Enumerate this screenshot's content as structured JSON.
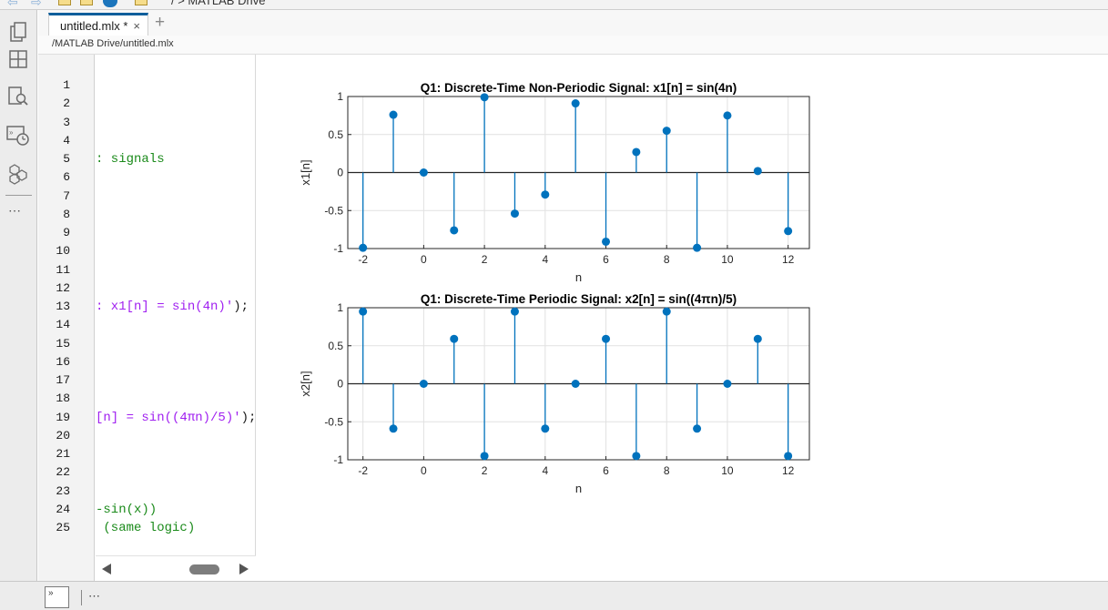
{
  "topbar": {
    "breadcrumb": "/  >  MATLAB Drive"
  },
  "left_rail": {
    "icons": [
      "files-icon",
      "layout-icon",
      "find-files-icon",
      "command-history-icon",
      "add-ons-icon"
    ],
    "more_label": "⋯"
  },
  "tabs": [
    {
      "label": "untitled.mlx *",
      "close_glyph": "×"
    }
  ],
  "add_tab_glyph": "+",
  "file_path": "/MATLAB Drive/untitled.mlx",
  "editor": {
    "line_numbers": [
      "1",
      "2",
      "3",
      "4",
      "5",
      "6",
      "7",
      "8",
      "9",
      "10",
      "11",
      "12",
      "13",
      "14",
      "15",
      "16",
      "17",
      "18",
      "19",
      "20",
      "21",
      "22",
      "23",
      "24",
      "25"
    ],
    "visible_code": [
      {
        "line": 5,
        "text": ": signals",
        "kind": "comment"
      },
      {
        "line": 13,
        "text": ": x1[n] = sin(4n)'",
        "kind": "string",
        "tail": ");"
      },
      {
        "line": 19,
        "text": "[n] = sin((4πn)/5)'",
        "kind": "string",
        "tail": ");"
      },
      {
        "line": 24,
        "text": "-sin(x))",
        "kind": "comment"
      },
      {
        "line": 25,
        "text": " (same logic)",
        "kind": "comment"
      }
    ]
  },
  "bottom_bar": {
    "command_icon_label": "»",
    "more_label": "⋯"
  },
  "colors": {
    "stem": "#0072bd",
    "tab_accent": "#0e5e9b",
    "comment": "#1a8a1a",
    "string": "#a020f0"
  },
  "chart_data": [
    {
      "type": "scatter",
      "style": "stem",
      "title": "Q1: Discrete-Time Non-Periodic Signal: x1[n] = sin(4n)",
      "xlabel": "n",
      "ylabel": "x1[n]",
      "xlim": [
        -2.5,
        12.7
      ],
      "ylim": [
        -1,
        1
      ],
      "xticks": [
        -2,
        0,
        2,
        4,
        6,
        8,
        10,
        12
      ],
      "yticks": [
        -1,
        -0.5,
        0,
        0.5,
        1
      ],
      "grid": true,
      "x": [
        -2,
        -1,
        0,
        1,
        2,
        3,
        4,
        5,
        6,
        7,
        8,
        9,
        10,
        11,
        12
      ],
      "y": [
        -0.99,
        0.76,
        0,
        -0.76,
        0.99,
        -0.54,
        -0.29,
        0.91,
        -0.91,
        0.27,
        0.55,
        -0.99,
        0.75,
        0.02,
        -0.77
      ]
    },
    {
      "type": "scatter",
      "style": "stem",
      "title": "Q1: Discrete-Time Periodic Signal: x2[n] = sin((4πn)/5)",
      "xlabel": "n",
      "ylabel": "x2[n]",
      "xlim": [
        -2.5,
        12.7
      ],
      "ylim": [
        -1,
        1
      ],
      "xticks": [
        -2,
        0,
        2,
        4,
        6,
        8,
        10,
        12
      ],
      "yticks": [
        -1,
        -0.5,
        0,
        0.5,
        1
      ],
      "grid": true,
      "x": [
        -2,
        -1,
        0,
        1,
        2,
        3,
        4,
        5,
        6,
        7,
        8,
        9,
        10,
        11,
        12
      ],
      "y": [
        0.95,
        -0.59,
        0,
        0.59,
        -0.95,
        0.95,
        -0.59,
        0,
        0.59,
        -0.95,
        0.95,
        -0.59,
        0,
        0.59,
        -0.95
      ]
    }
  ]
}
